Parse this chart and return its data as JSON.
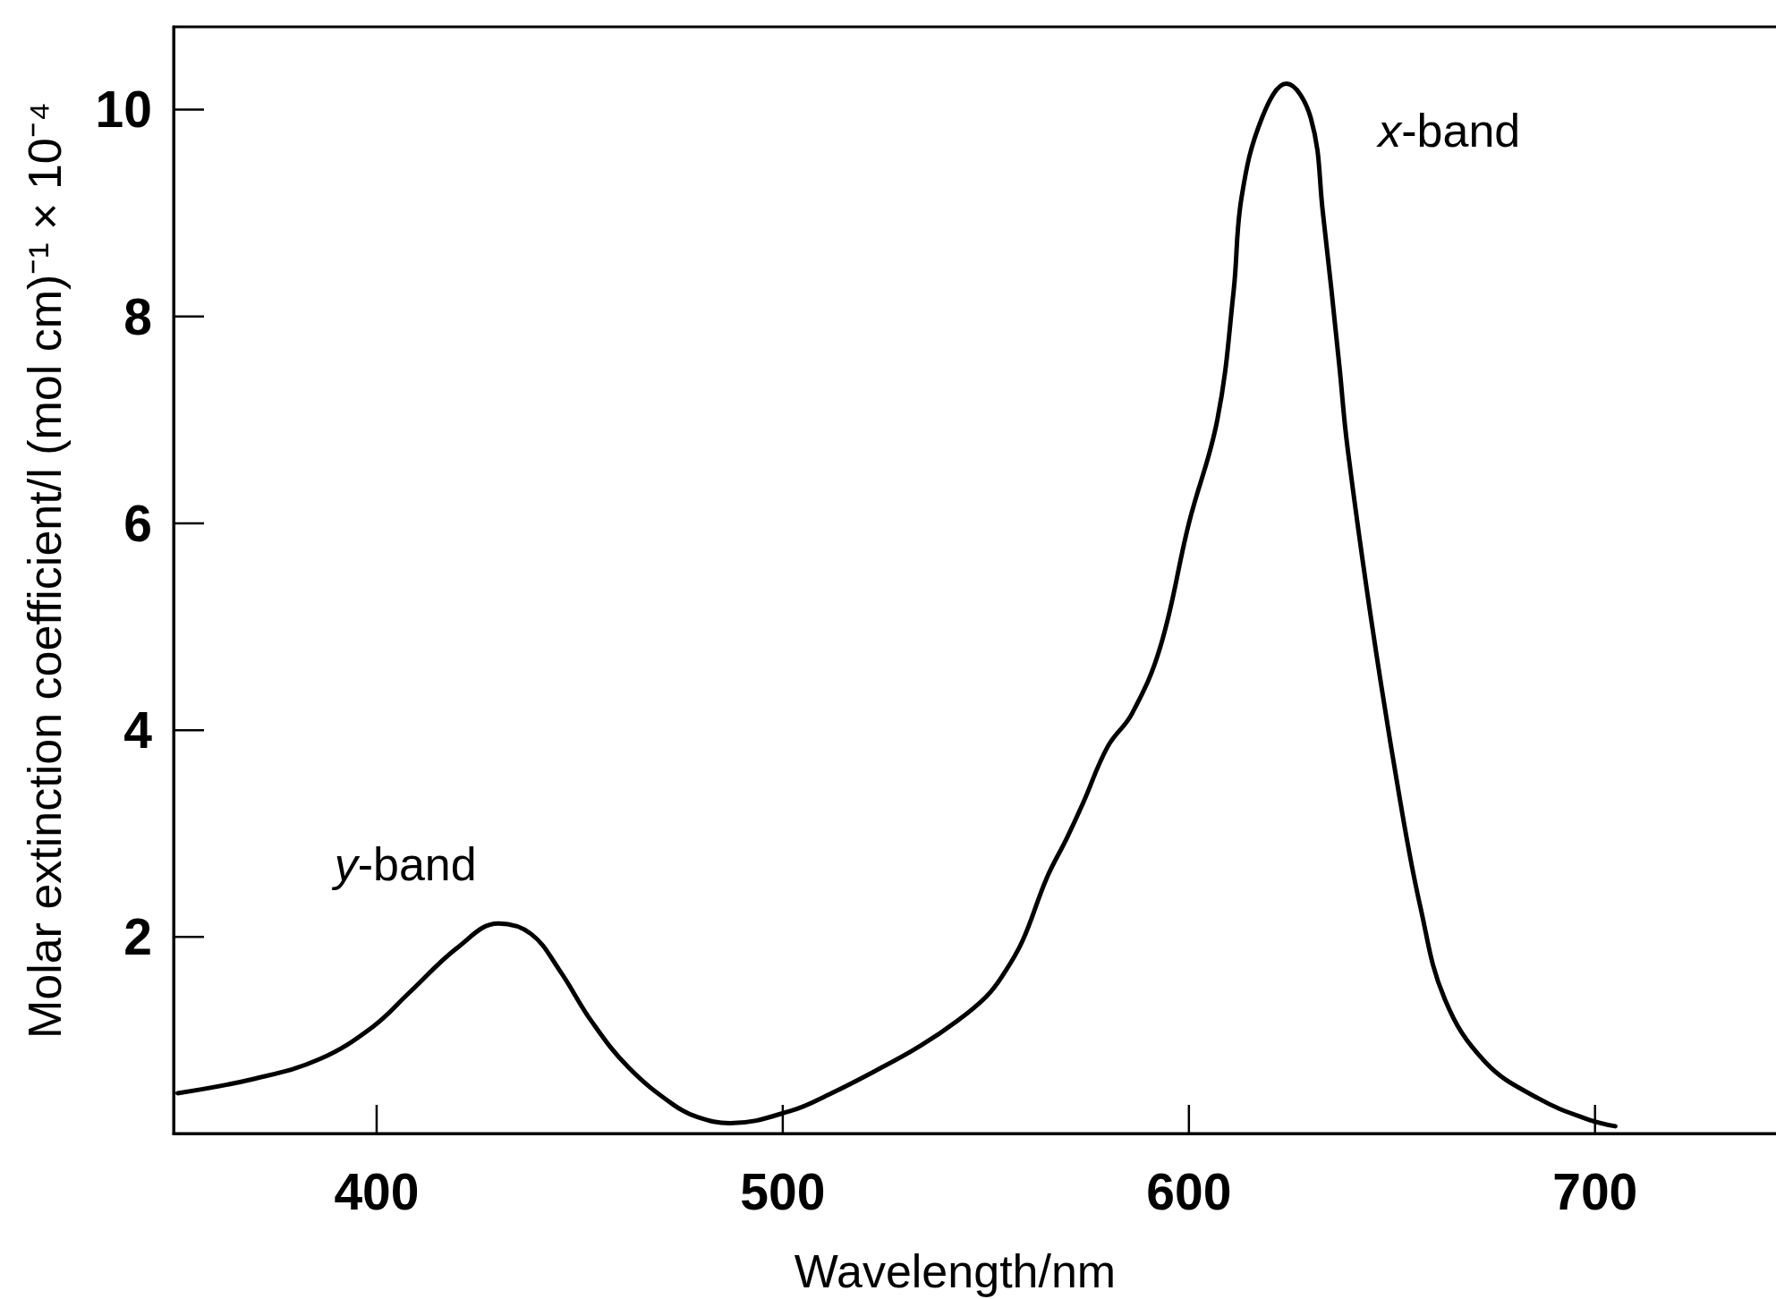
{
  "chart_data": {
    "type": "line",
    "xlabel": "Wavelength/nm",
    "ylabel": "Molar extinction coefficient/l (mol cm)⁻¹ × 10⁻⁴",
    "x": [
      351,
      370,
      386,
      399,
      408,
      420,
      430,
      438,
      445,
      453,
      462,
      473,
      479,
      487,
      502,
      512,
      523,
      534,
      543,
      550,
      554,
      559,
      565,
      570,
      574,
      580,
      586,
      593,
      600,
      607,
      611,
      613,
      618,
      624,
      630,
      633,
      637,
      639,
      645,
      652,
      657,
      663,
      673,
      686,
      698,
      705
    ],
    "values": [
      0.49,
      0.63,
      0.82,
      1.13,
      1.46,
      1.9,
      2.13,
      2.03,
      1.68,
      1.18,
      0.74,
      0.38,
      0.26,
      0.2,
      0.32,
      0.49,
      0.71,
      0.95,
      1.19,
      1.42,
      1.62,
      1.96,
      2.57,
      2.96,
      3.3,
      3.84,
      4.16,
      4.81,
      6.0,
      7.0,
      8.24,
      9.16,
      9.92,
      10.25,
      9.92,
      9.0,
      7.54,
      6.75,
      5.04,
      3.32,
      2.29,
      1.4,
      0.79,
      0.44,
      0.24,
      0.17
    ],
    "color": "#000000",
    "xlim": [
      350,
      745
    ],
    "xticks": [
      400,
      500,
      600,
      700
    ],
    "ylim": [
      0.1,
      10.8
    ],
    "yticks": [
      2,
      4,
      6,
      8,
      10
    ],
    "annotations": [
      {
        "text": "y-band",
        "x": 430,
        "y": 2.13
      },
      {
        "text": "x-band",
        "x": 624,
        "y": 10.25
      }
    ]
  }
}
